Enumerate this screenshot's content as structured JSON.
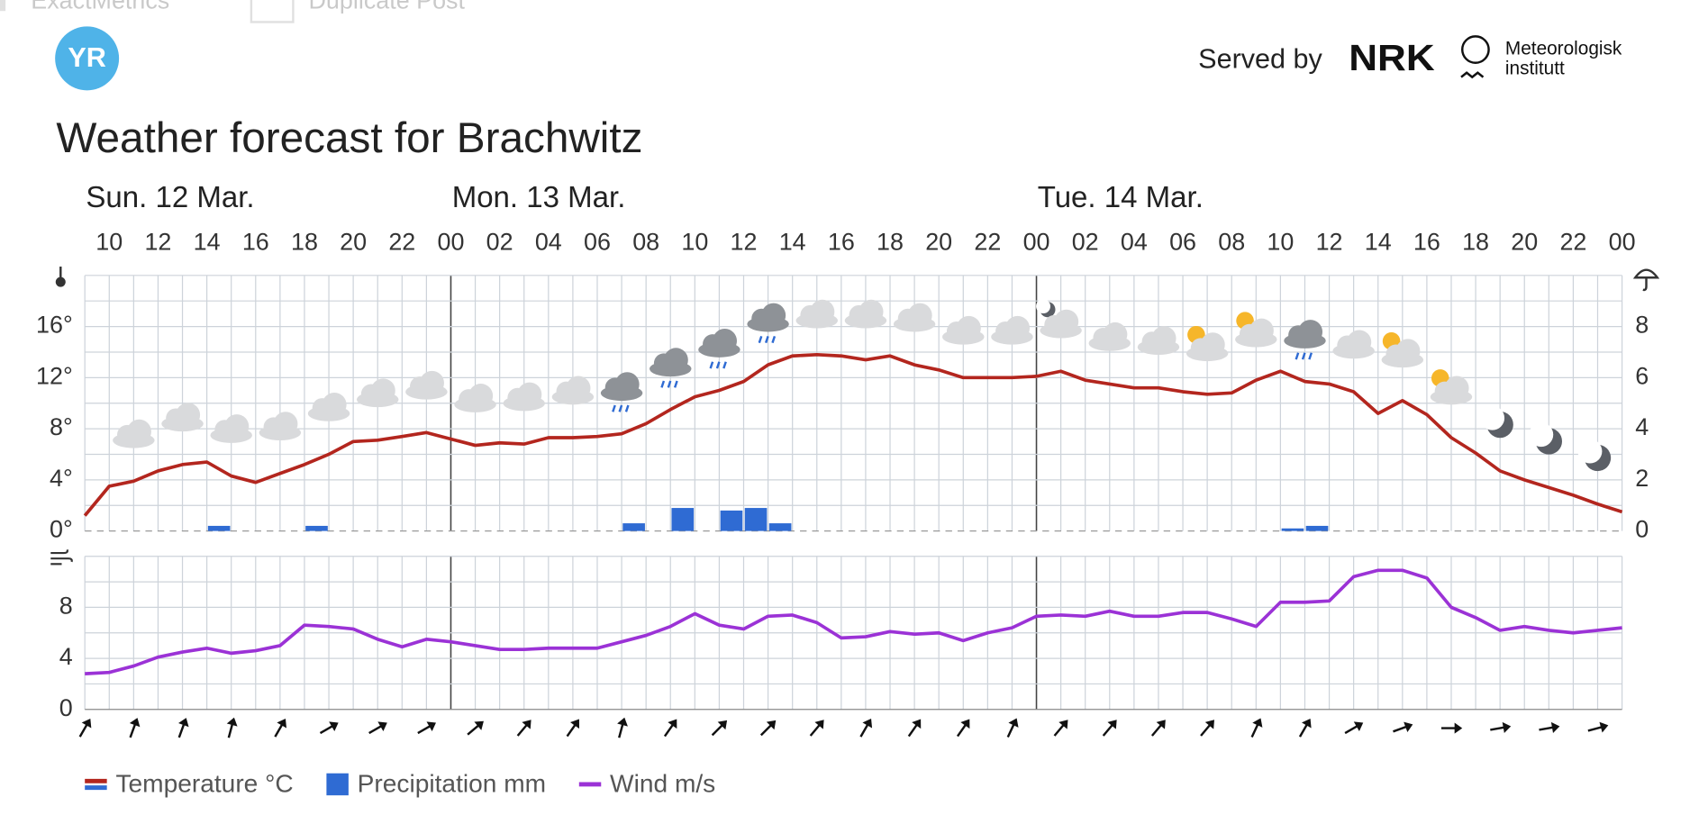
{
  "toolbar": [
    "ExactMetrics",
    "Duplicate Post"
  ],
  "logo": "YR",
  "served_by": "Served by",
  "provider_logo": "NRK",
  "institute": [
    "Meteorologisk",
    "institutt"
  ],
  "chart_data": {
    "type": "line",
    "title": "Weather forecast for Brachwitz",
    "days": [
      "Sun. 12 Mar.",
      "Mon. 13 Mar.",
      "Tue. 14 Mar."
    ],
    "categories": [
      null,
      "10",
      null,
      "12",
      null,
      "14",
      null,
      "16",
      null,
      "18",
      null,
      "20",
      null,
      "22",
      null,
      "00",
      null,
      "02",
      null,
      "04",
      null,
      "06",
      null,
      "08",
      null,
      "10",
      null,
      "12",
      null,
      "14",
      null,
      "16",
      null,
      "18",
      null,
      "20",
      null,
      "22",
      null,
      "00",
      null,
      "02",
      null,
      "04",
      null,
      "06",
      null,
      "08",
      null,
      "10",
      null,
      "12",
      null,
      "14",
      null,
      "16",
      null,
      "18",
      null,
      "20",
      null,
      "22",
      null,
      "00"
    ],
    "series": [
      {
        "name": "Temperature °C",
        "color": "#b3261e",
        "values": [
          1.2,
          3.5,
          3.9,
          4.7,
          5.2,
          5.4,
          4.3,
          3.8,
          4.5,
          5.2,
          6.0,
          7.0,
          7.1,
          7.4,
          7.7,
          7.2,
          6.7,
          6.9,
          6.8,
          7.3,
          7.3,
          7.4,
          7.6,
          8.4,
          9.5,
          10.5,
          11.0,
          11.7,
          13.0,
          13.7,
          13.8,
          13.7,
          13.4,
          13.7,
          13.0,
          12.6,
          12.0,
          12.0,
          12.0,
          12.1,
          12.5,
          11.8,
          11.5,
          11.2,
          11.2,
          10.9,
          10.7,
          10.8,
          11.8,
          12.5,
          11.7,
          11.5,
          10.9,
          9.2,
          10.2,
          9.1,
          7.3,
          6.1,
          4.7,
          4.0,
          3.4,
          2.8,
          2.1,
          1.5
        ]
      },
      {
        "name": "Precipitation mm",
        "color": "#2f6bd3",
        "axis": "y2",
        "values": [
          0,
          0,
          0,
          0,
          0,
          0.2,
          0,
          0,
          0,
          0.2,
          0,
          0,
          0,
          0,
          0,
          0,
          0,
          0,
          0,
          0,
          0,
          0,
          0.3,
          0,
          0.9,
          0,
          0.8,
          0.9,
          0.3,
          0,
          0,
          0,
          0,
          0,
          0,
          0,
          0,
          0,
          0,
          0,
          0,
          0,
          0,
          0,
          0,
          0,
          0,
          0,
          0,
          0.1,
          0.2,
          0,
          0,
          0,
          0,
          0,
          0,
          0,
          0,
          0,
          0,
          0,
          0,
          0
        ]
      },
      {
        "name": "Wind m/s",
        "color": "#9b32d6",
        "axis": "wind",
        "values": [
          2.8,
          2.9,
          3.4,
          4.1,
          4.5,
          4.8,
          4.4,
          4.6,
          5.0,
          6.6,
          6.5,
          6.3,
          5.5,
          4.9,
          5.5,
          5.3,
          5.0,
          4.7,
          4.7,
          4.8,
          4.8,
          4.8,
          5.3,
          5.8,
          6.5,
          7.5,
          6.6,
          6.3,
          7.3,
          7.4,
          6.8,
          5.6,
          5.7,
          6.1,
          5.9,
          6.0,
          5.4,
          6.0,
          6.4,
          7.3,
          7.4,
          7.3,
          7.7,
          7.3,
          7.3,
          7.6,
          7.6,
          7.1,
          6.5,
          8.4,
          8.4,
          8.5,
          10.4,
          10.9,
          10.9,
          10.3,
          8.0,
          7.2,
          6.2,
          6.5,
          6.2,
          6.0,
          6.2,
          6.4
        ]
      }
    ],
    "wind_direction": [
      30,
      null,
      20,
      null,
      20,
      null,
      15,
      null,
      30,
      null,
      60,
      null,
      60,
      null,
      60,
      null,
      50,
      null,
      40,
      null,
      35,
      null,
      15,
      null,
      35,
      null,
      45,
      null,
      45,
      null,
      40,
      null,
      30,
      null,
      35,
      null,
      35,
      null,
      25,
      null,
      40,
      null,
      40,
      null,
      40,
      null,
      40,
      null,
      25,
      null,
      30,
      null,
      60,
      null,
      70,
      null,
      90,
      null,
      80,
      null,
      80,
      null,
      75,
      null
    ],
    "ylim": [
      0,
      20
    ],
    "yticks": [
      {
        "value": 0,
        "label": "0°"
      },
      {
        "value": 4,
        "label": "4°"
      },
      {
        "value": 8,
        "label": "8°"
      },
      {
        "value": 12,
        "label": "12°"
      },
      {
        "value": 16,
        "label": "16°"
      }
    ],
    "y2lim": [
      0,
      10
    ],
    "y2ticks": [
      0,
      2,
      4,
      6,
      8
    ],
    "wind_ylim": [
      0,
      12
    ],
    "wind_yticks": [
      0,
      4,
      8
    ],
    "grid": true
  }
}
